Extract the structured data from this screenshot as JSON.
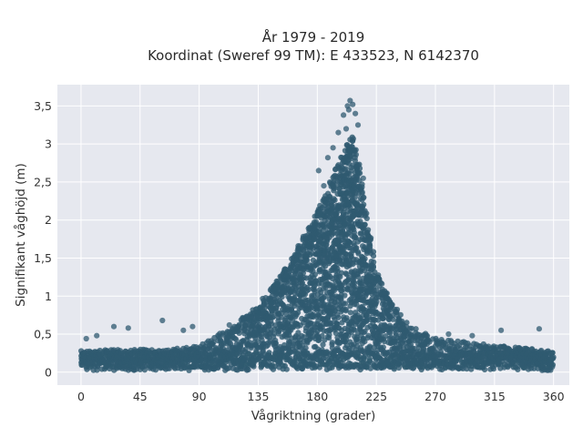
{
  "chart_data": {
    "type": "scatter",
    "title": "År 1979 - 2019",
    "subtitle": "Koordinat (Sweref 99 TM): E 433523, N 6142370",
    "xlabel": "Vågriktning (grader)",
    "ylabel": "Signifikant våghöjd (m)",
    "xlim": [
      -18,
      372
    ],
    "ylim": [
      -0.17,
      3.78
    ],
    "xticks": [
      0,
      45,
      90,
      135,
      180,
      225,
      270,
      315,
      360
    ],
    "xtick_labels": [
      "0",
      "45",
      "90",
      "135",
      "180",
      "225",
      "270",
      "315",
      "360"
    ],
    "yticks": [
      0,
      0.5,
      1,
      1.5,
      2,
      2.5,
      3,
      3.5
    ],
    "ytick_labels": [
      "0",
      "0,5",
      "1",
      "1,5",
      "2",
      "2,5",
      "3",
      "3,5"
    ],
    "grid": true,
    "legend": "none",
    "series": [
      {
        "color": "#2f5a70",
        "description": "Dense point cloud; baseline band ~0.05–0.3 m at all directions, upper envelope peaks near 205°.",
        "envelope": {
          "x": [
            0,
            30,
            60,
            90,
            110,
            130,
            145,
            155,
            165,
            175,
            185,
            192,
            198,
            203,
            207,
            212,
            218,
            225,
            235,
            250,
            270,
            300,
            330,
            360
          ],
          "y_max": [
            0.28,
            0.3,
            0.3,
            0.35,
            0.55,
            0.8,
            1.1,
            1.35,
            1.65,
            1.95,
            2.3,
            2.6,
            2.85,
            3.0,
            3.1,
            2.75,
            2.0,
            1.35,
            0.95,
            0.62,
            0.45,
            0.38,
            0.33,
            0.28
          ]
        },
        "outliers": [
          {
            "x": 200,
            "y": 3.38
          },
          {
            "x": 203,
            "y": 3.5
          },
          {
            "x": 205,
            "y": 3.57
          },
          {
            "x": 207,
            "y": 3.52
          },
          {
            "x": 204,
            "y": 3.45
          },
          {
            "x": 209,
            "y": 3.4
          },
          {
            "x": 211,
            "y": 3.25
          },
          {
            "x": 196,
            "y": 3.15
          },
          {
            "x": 192,
            "y": 2.95
          },
          {
            "x": 188,
            "y": 2.82
          },
          {
            "x": 181,
            "y": 2.65
          },
          {
            "x": 202,
            "y": 3.2
          },
          {
            "x": 215,
            "y": 2.55
          },
          {
            "x": 185,
            "y": 2.45
          },
          {
            "x": 12,
            "y": 0.48
          },
          {
            "x": 25,
            "y": 0.6
          },
          {
            "x": 36,
            "y": 0.58
          },
          {
            "x": 62,
            "y": 0.68
          },
          {
            "x": 78,
            "y": 0.55
          },
          {
            "x": 85,
            "y": 0.6
          },
          {
            "x": 113,
            "y": 0.62
          },
          {
            "x": 320,
            "y": 0.55
          },
          {
            "x": 349,
            "y": 0.57
          },
          {
            "x": 280,
            "y": 0.5
          },
          {
            "x": 298,
            "y": 0.48
          },
          {
            "x": 4,
            "y": 0.44
          }
        ]
      }
    ]
  }
}
